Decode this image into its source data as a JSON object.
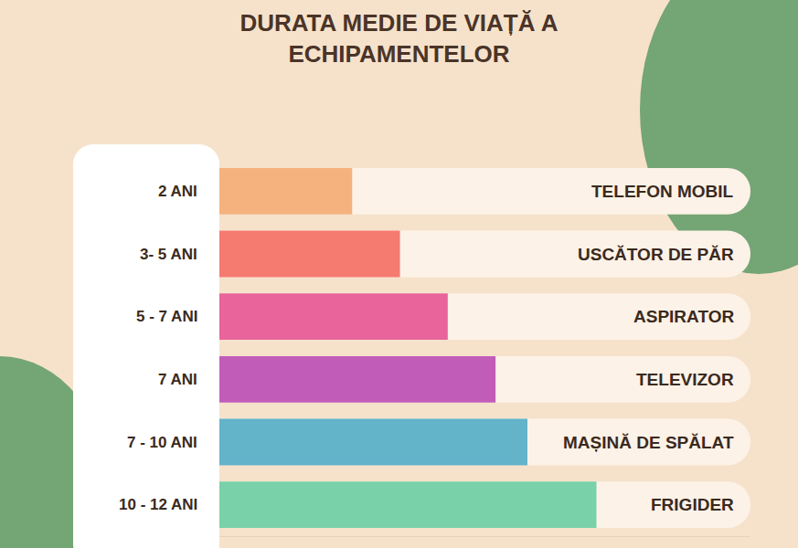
{
  "chart_data": {
    "type": "bar",
    "orientation": "horizontal",
    "title": "DURATA MEDIE DE VIAȚĂ A ECHIPAMENTELOR",
    "categories": [
      "TELEFON MOBIL",
      "USCĂTOR DE PĂR",
      "ASPIRATOR",
      "TELEVIZOR",
      "MAȘINĂ DE SPĂLAT",
      "FRIGIDER"
    ],
    "values": [
      25,
      34,
      43,
      52,
      58,
      71
    ],
    "durations": [
      "2 ANI",
      "3- 5 ANI",
      "5 - 7 ANI",
      "7 ANI",
      "7 - 10 ANI",
      "10 - 12 ANI"
    ],
    "colors": [
      "#f5b27e",
      "#f57a70",
      "#e8649a",
      "#c15cb8",
      "#63b3c9",
      "#78d1a8"
    ],
    "xlim": [
      0,
      100
    ],
    "tick_labels": false,
    "grid": false,
    "data_labels": false
  }
}
